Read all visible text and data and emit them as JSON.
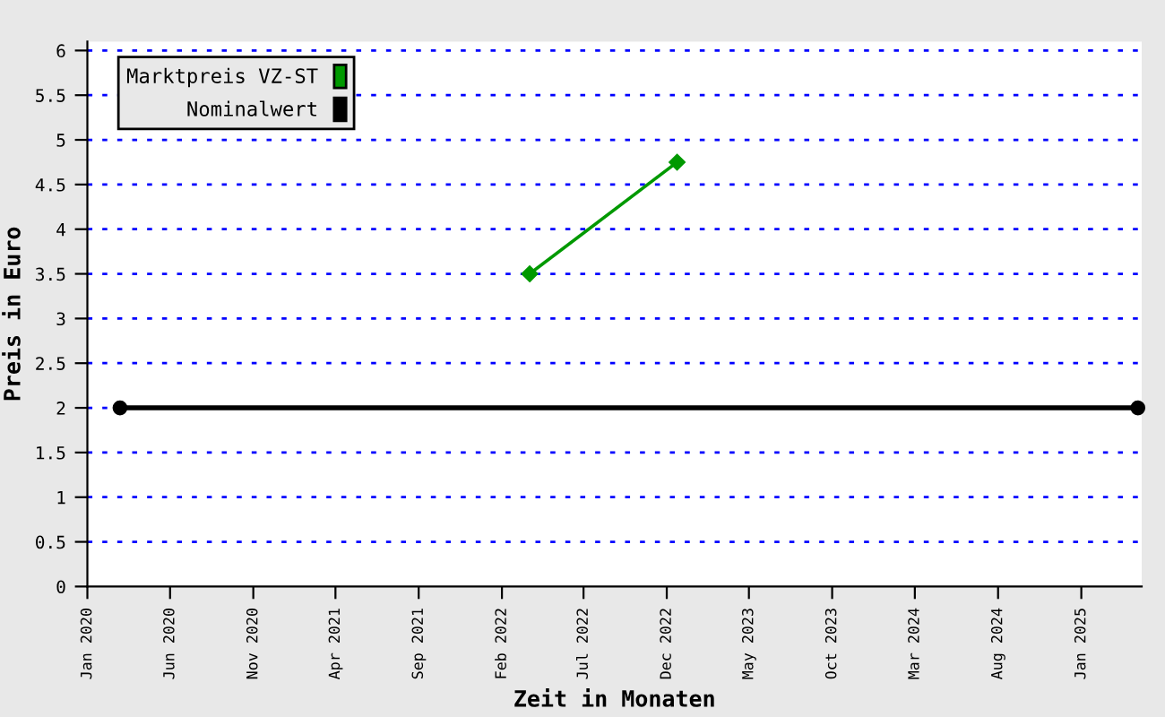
{
  "chart_data": {
    "type": "line",
    "xlabel": "Zeit in Monaten",
    "ylabel": "Preis in Euro",
    "xlim": [
      "2020-01-01",
      "2025-04-22"
    ],
    "ylim": [
      0,
      6.1
    ],
    "xticks": [
      {
        "value": "2020-01-01",
        "label": "Jan 2020"
      },
      {
        "value": "2020-06-01",
        "label": "Jun 2020"
      },
      {
        "value": "2020-11-01",
        "label": "Nov 2020"
      },
      {
        "value": "2021-04-01",
        "label": "Apr 2021"
      },
      {
        "value": "2021-09-01",
        "label": "Sep 2021"
      },
      {
        "value": "2022-02-01",
        "label": "Feb 2022"
      },
      {
        "value": "2022-07-01",
        "label": "Jul 2022"
      },
      {
        "value": "2022-12-01",
        "label": "Dec 2022"
      },
      {
        "value": "2023-05-01",
        "label": "May 2023"
      },
      {
        "value": "2023-10-01",
        "label": "Oct 2023"
      },
      {
        "value": "2024-03-01",
        "label": "Mar 2024"
      },
      {
        "value": "2024-08-01",
        "label": "Aug 2024"
      },
      {
        "value": "2025-01-01",
        "label": "Jan 2025"
      }
    ],
    "yticks": [
      0,
      0.5,
      1,
      1.5,
      2,
      2.5,
      3,
      3.5,
      4,
      4.5,
      5,
      5.5,
      6
    ],
    "grid": "y",
    "legend": "top left",
    "series": [
      {
        "name": "Marktpreis VZ-ST",
        "color": "#009900",
        "marker": "diamond",
        "x": [
          "2022-03-24",
          "2022-12-20"
        ],
        "values": [
          3.5,
          4.75
        ]
      },
      {
        "name": "Nominalwert",
        "color": "#000000",
        "marker": "circle",
        "x": [
          "2020-03-01",
          "2025-04-15"
        ],
        "values": [
          2,
          2
        ]
      }
    ]
  }
}
